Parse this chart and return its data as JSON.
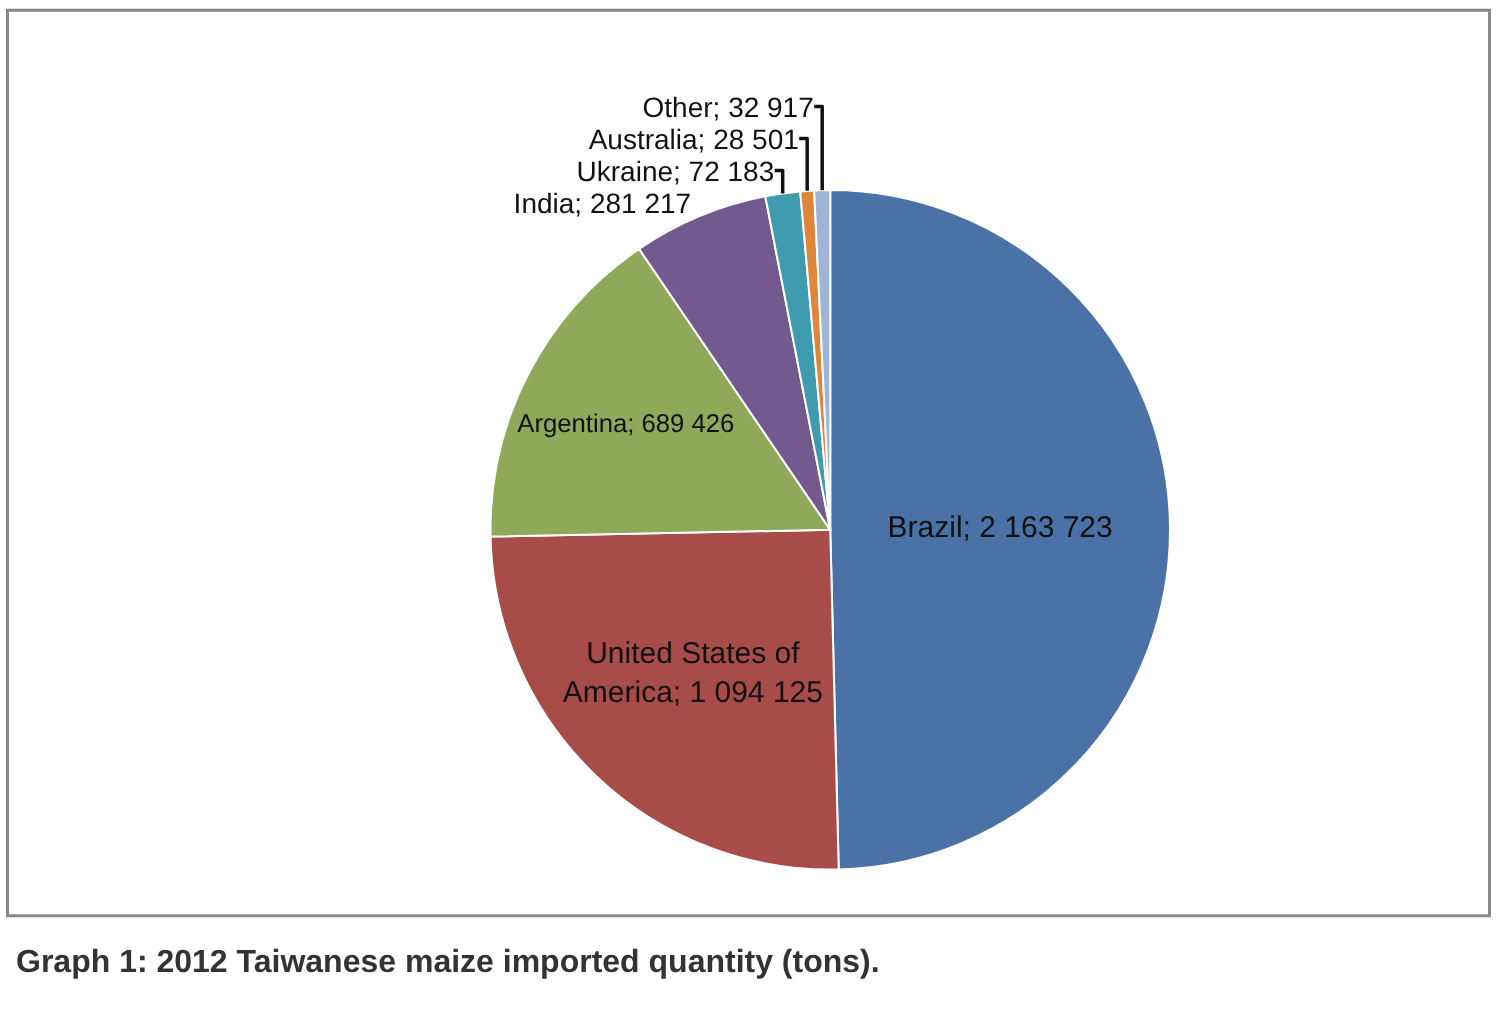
{
  "chart_data": {
    "type": "pie",
    "annotations": [
      "Graph 1: 2012 Taiwanese maize imported quantity (tons)."
    ],
    "categories": [
      "Brazil",
      "United States of America",
      "Argentina",
      "India",
      "Ukraine",
      "Australia",
      "Other"
    ],
    "values": [
      2163723,
      1094125,
      689426,
      281217,
      72183,
      28501,
      32917
    ],
    "value_labels": [
      "2 163 723",
      "1 094 125",
      "689 426",
      "281 217",
      "72 183",
      "28 501",
      "32 917"
    ],
    "colors": [
      "#4a72a6",
      "#a84c4a",
      "#8fa85a",
      "#735a8e",
      "#3f9bb0",
      "#e0863a",
      "#9fb4d6"
    ],
    "legend": false
  }
}
